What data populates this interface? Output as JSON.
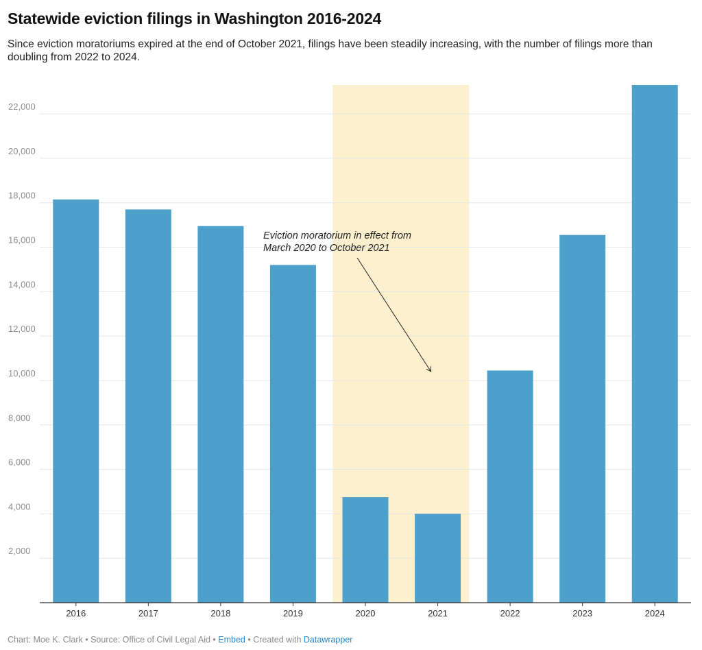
{
  "header": {
    "title": "Statewide eviction filings in Washington 2016-2024",
    "subtitle": "Since eviction moratoriums expired at the end of October 2021, filings have been steadily increasing, with the number of filings more than doubling from 2022 to 2024."
  },
  "footer": {
    "prefix": "Chart: Moe K. Clark • Source: Office of Civil Legal Aid •",
    "embed": "Embed",
    "created_with": "• Created with",
    "datawrapper": "Datawrapper"
  },
  "colors": {
    "bar": "#4da0c9",
    "highlight_band": "#fcf0cf",
    "grid": "#e6e6e6",
    "axis": "#333333",
    "link": "#2e86c1"
  },
  "chart_data": {
    "type": "bar",
    "categories": [
      "2016",
      "2017",
      "2018",
      "2019",
      "2020",
      "2021",
      "2022",
      "2023",
      "2024"
    ],
    "values": [
      18150,
      17700,
      16950,
      15200,
      4750,
      4000,
      10450,
      16550,
      23300
    ],
    "ylim": [
      0,
      23300
    ],
    "yticks": [
      2000,
      4000,
      6000,
      8000,
      10000,
      12000,
      14000,
      16000,
      18000,
      20000,
      22000
    ],
    "ytick_labels": [
      "2,000",
      "4,000",
      "6,000",
      "8,000",
      "10,000",
      "12,000",
      "14,000",
      "16,000",
      "18,000",
      "20,000",
      "22,000"
    ],
    "grid": true,
    "highlight": {
      "from_category": "2020",
      "to_category": "2021",
      "label_lines": [
        "Eviction moratorium in effect from",
        "March 2020 to October 2021"
      ]
    }
  }
}
